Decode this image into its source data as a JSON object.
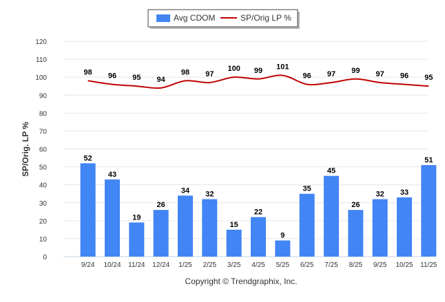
{
  "chart_data": {
    "type": "bar",
    "categories": [
      "9/24",
      "10/24",
      "11/24",
      "12/24",
      "1/25",
      "2/25",
      "3/25",
      "4/25",
      "5/25",
      "6/25",
      "7/25",
      "8/25",
      "9/25",
      "10/25",
      "11/25"
    ],
    "series": [
      {
        "name": "Avg CDOM",
        "type": "bar",
        "color": "#4285f4",
        "values": [
          52,
          43,
          19,
          26,
          34,
          32,
          15,
          22,
          9,
          35,
          45,
          26,
          32,
          33,
          51
        ]
      },
      {
        "name": "SP/Orig LP %",
        "type": "line",
        "color": "#c00000",
        "values": [
          98,
          96,
          95,
          94,
          98,
          97,
          100,
          99,
          101,
          96,
          97,
          99,
          97,
          96,
          95
        ]
      }
    ],
    "ylabel": "SP/Orig. LP %",
    "xlabel": "",
    "ylim": [
      0,
      120
    ],
    "yticks": [
      0,
      10,
      20,
      30,
      40,
      50,
      60,
      70,
      80,
      90,
      100,
      110,
      120
    ],
    "grid": true,
    "legend_position": "top-center",
    "footer": "Copyright © Trendgraphix, Inc."
  }
}
